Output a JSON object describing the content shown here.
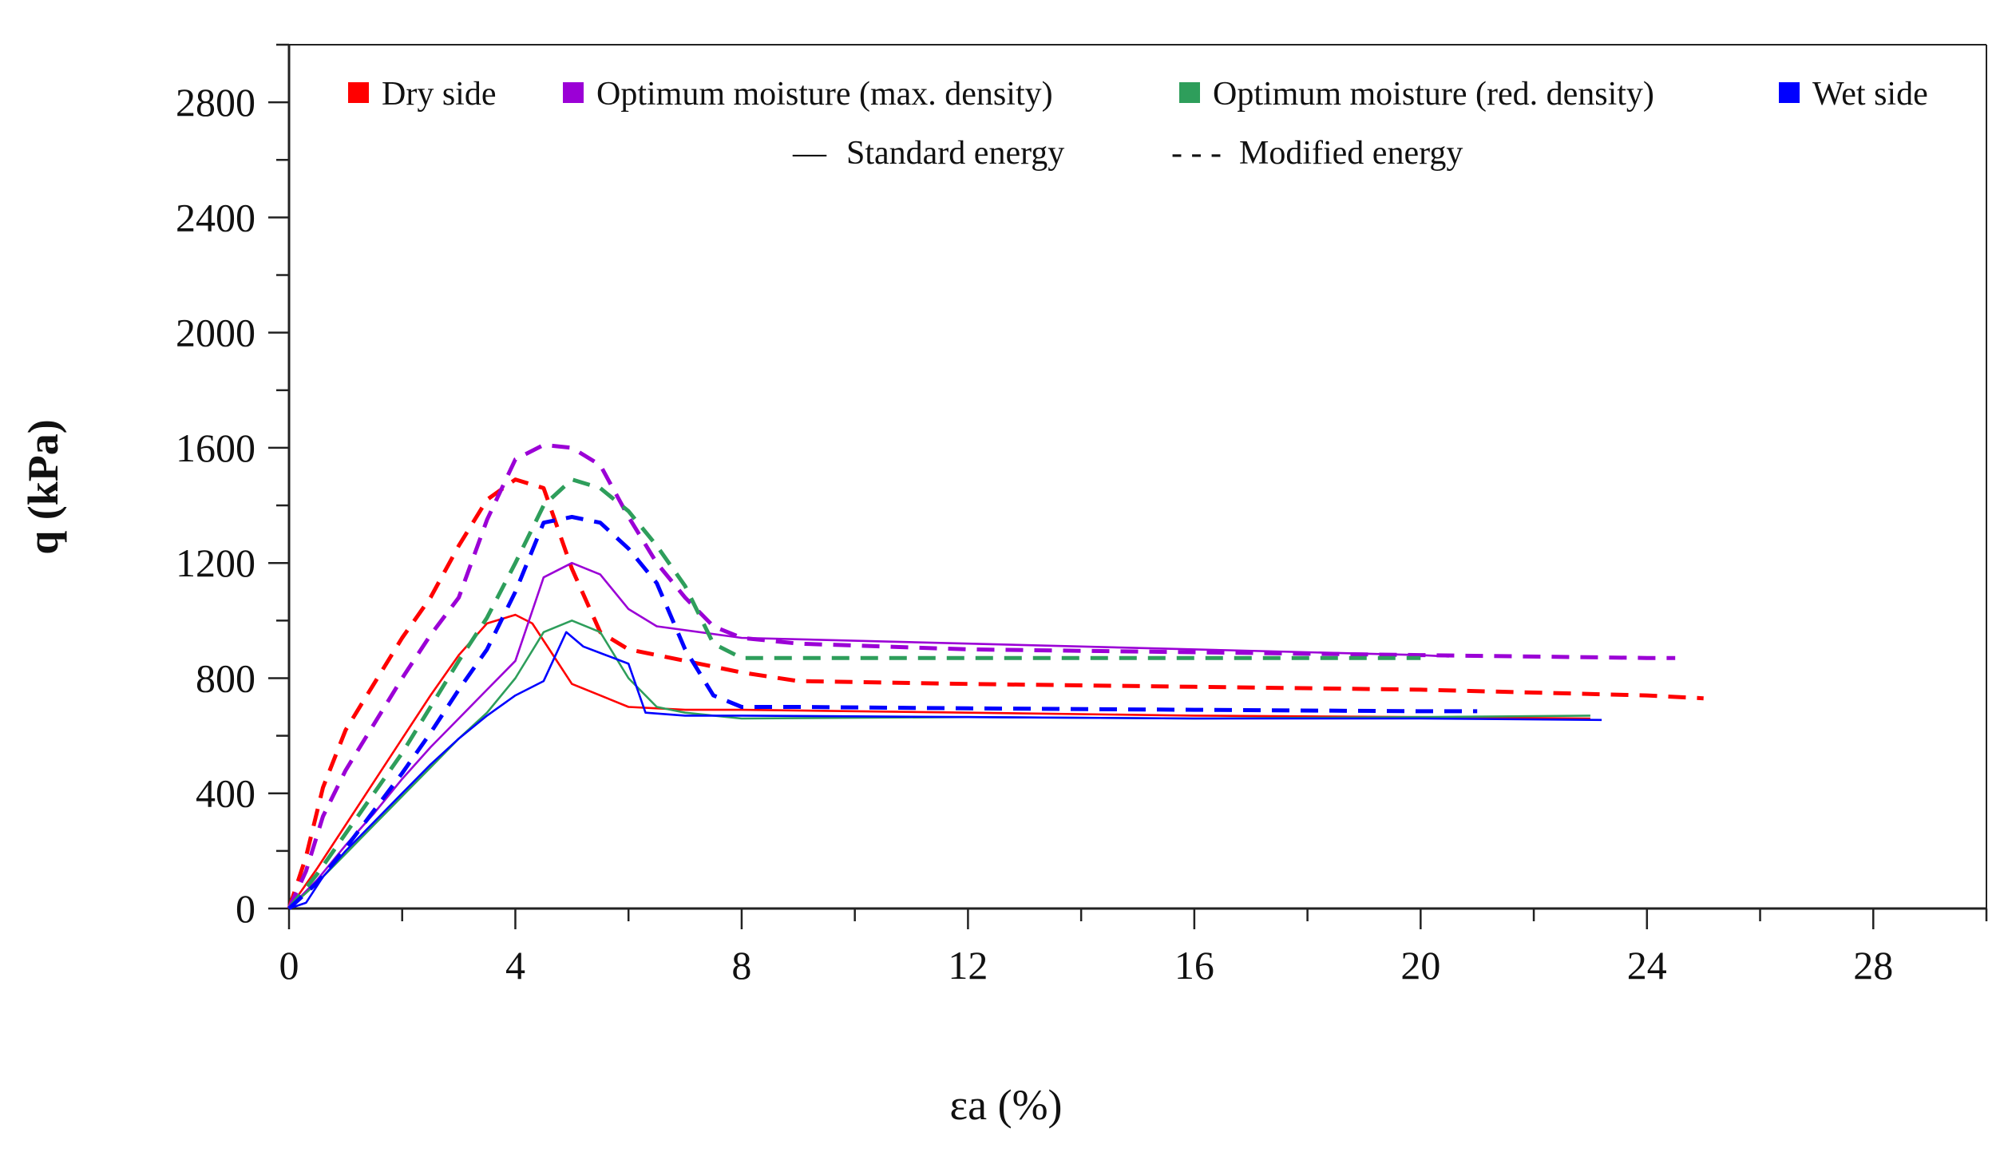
{
  "chart_data": {
    "type": "line",
    "title": "",
    "xlabel": "εa (%)",
    "ylabel": "q (kPa)",
    "xlim": [
      0,
      30
    ],
    "ylim": [
      0,
      3000
    ],
    "xticks": [
      0,
      4,
      8,
      12,
      16,
      20,
      24,
      28
    ],
    "yticks": [
      0,
      400,
      800,
      1200,
      1600,
      2000,
      2400,
      2800
    ],
    "x_minor_step": 2,
    "y_minor_step": 200,
    "grid": false,
    "legend_position": "top",
    "legend": {
      "conditions": [
        {
          "label": "Dry side",
          "color": "#ff0000"
        },
        {
          "label": "Optimum moisture (max. density)",
          "color": "#9b00d6"
        },
        {
          "label": "Optimum moisture (red. density)",
          "color": "#2e9e5b"
        },
        {
          "label": "Wet side",
          "color": "#0000ff"
        }
      ],
      "styles": [
        {
          "label": "Standard energy",
          "style": "solid",
          "marker_text": "—"
        },
        {
          "label": "Modified energy",
          "style": "dashed",
          "marker_text": "- - -"
        }
      ]
    },
    "series": [
      {
        "name": "Dry side - Standard energy",
        "color": "#ff0000",
        "style": "solid",
        "x": [
          0,
          0.5,
          1,
          1.5,
          2,
          2.5,
          3,
          3.5,
          4,
          4.3,
          4.6,
          5,
          5.5,
          6,
          7,
          8,
          12,
          16,
          20,
          23
        ],
        "y": [
          0,
          140,
          290,
          440,
          590,
          740,
          880,
          990,
          1020,
          990,
          900,
          780,
          740,
          700,
          690,
          690,
          680,
          670,
          665,
          660
        ]
      },
      {
        "name": "Dry side - Modified energy",
        "color": "#ff0000",
        "style": "dashed",
        "x": [
          0,
          0.3,
          0.6,
          1,
          1.5,
          2,
          2.5,
          3,
          3.5,
          4,
          4.5,
          5,
          5.5,
          6,
          7,
          8,
          9,
          12,
          16,
          20,
          24,
          25
        ],
        "y": [
          0,
          180,
          420,
          620,
          780,
          940,
          1080,
          1260,
          1420,
          1490,
          1460,
          1180,
          960,
          900,
          860,
          820,
          790,
          780,
          770,
          760,
          740,
          730
        ]
      },
      {
        "name": "Optimum moisture (max. density) - Standard energy",
        "color": "#9b00d6",
        "style": "solid",
        "x": [
          0,
          0.5,
          1,
          1.5,
          2,
          2.5,
          3,
          3.5,
          4,
          4.5,
          5,
          5.5,
          6,
          6.5,
          8,
          12,
          16,
          20,
          20.5
        ],
        "y": [
          0,
          100,
          220,
          330,
          450,
          560,
          660,
          760,
          860,
          1150,
          1200,
          1160,
          1040,
          980,
          940,
          920,
          900,
          880,
          875
        ]
      },
      {
        "name": "Optimum moisture (max. density) - Modified energy",
        "color": "#9b00d6",
        "style": "dashed",
        "x": [
          0,
          0.3,
          0.6,
          1,
          1.5,
          2,
          2.5,
          3,
          3.5,
          4,
          4.5,
          5,
          5.5,
          6,
          6.5,
          7,
          7.5,
          8,
          9,
          12,
          16,
          20,
          24,
          24.5
        ],
        "y": [
          0,
          130,
          320,
          480,
          640,
          800,
          950,
          1080,
          1350,
          1560,
          1610,
          1600,
          1540,
          1360,
          1200,
          1080,
          980,
          940,
          920,
          900,
          890,
          880,
          870,
          870
        ]
      },
      {
        "name": "Optimum moisture (red. density) - Standard energy",
        "color": "#2e9e5b",
        "style": "solid",
        "x": [
          0,
          0.5,
          1,
          1.5,
          2,
          2.5,
          3,
          3.5,
          4,
          4.5,
          5,
          5.5,
          6,
          6.5,
          7,
          8,
          12,
          16,
          20,
          23
        ],
        "y": [
          0,
          90,
          190,
          290,
          390,
          490,
          590,
          680,
          800,
          960,
          1000,
          960,
          800,
          700,
          680,
          660,
          665,
          660,
          665,
          670
        ]
      },
      {
        "name": "Optimum moisture (red. density) - Modified energy",
        "color": "#2e9e5b",
        "style": "dashed",
        "x": [
          0,
          0.5,
          1,
          1.5,
          2,
          2.5,
          3,
          3.5,
          4,
          4.5,
          5,
          5.5,
          6,
          6.5,
          7,
          7.5,
          8,
          12,
          16,
          20
        ],
        "y": [
          0,
          120,
          260,
          400,
          540,
          700,
          860,
          1010,
          1200,
          1400,
          1490,
          1460,
          1380,
          1260,
          1120,
          920,
          870,
          870,
          870,
          870
        ]
      },
      {
        "name": "Wet side - Standard energy",
        "color": "#0000ff",
        "style": "solid",
        "x": [
          0,
          0.3,
          0.6,
          1,
          1.5,
          2,
          2.5,
          3,
          3.5,
          4,
          4.5,
          4.9,
          5.2,
          5.6,
          6,
          6.3,
          7,
          8,
          12,
          16,
          20,
          23.2
        ],
        "y": [
          0,
          20,
          110,
          200,
          300,
          400,
          500,
          590,
          670,
          740,
          790,
          960,
          910,
          880,
          850,
          680,
          670,
          670,
          665,
          660,
          660,
          655
        ]
      },
      {
        "name": "Wet side - Modified energy",
        "color": "#0000ff",
        "style": "dashed",
        "x": [
          0,
          0.5,
          1,
          1.5,
          2,
          2.5,
          3,
          3.5,
          4,
          4.5,
          5,
          5.5,
          6,
          6.5,
          7,
          7.5,
          8,
          9,
          12,
          16,
          20,
          21
        ],
        "y": [
          0,
          90,
          210,
          340,
          470,
          610,
          760,
          900,
          1100,
          1340,
          1360,
          1340,
          1250,
          1130,
          900,
          740,
          700,
          700,
          695,
          690,
          685,
          685
        ]
      }
    ]
  }
}
